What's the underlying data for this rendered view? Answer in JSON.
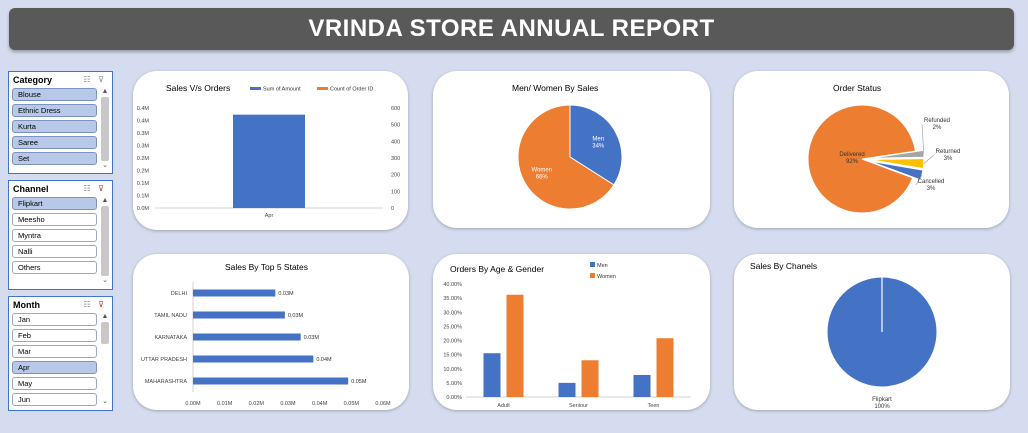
{
  "header": {
    "title": "VRINDA STORE ANNUAL REPORT"
  },
  "colors": {
    "blue": "#4472c4",
    "orange": "#ed7d31",
    "gray": "#a5a5a5",
    "yellow": "#ffc000",
    "banner": "#595959",
    "background": "#d5dcef"
  },
  "slicers": {
    "category": {
      "title": "Category",
      "items": [
        {
          "label": "Blouse",
          "selected": true
        },
        {
          "label": "Ethnic Dress",
          "selected": true
        },
        {
          "label": "Kurta",
          "selected": true
        },
        {
          "label": "Saree",
          "selected": true
        },
        {
          "label": "Set",
          "selected": true
        }
      ]
    },
    "channel": {
      "title": "Channel",
      "items": [
        {
          "label": "Flipkart",
          "selected": true
        },
        {
          "label": "Meesho",
          "selected": false
        },
        {
          "label": "Myntra",
          "selected": false
        },
        {
          "label": "Nalli",
          "selected": false
        },
        {
          "label": "Others",
          "selected": false
        }
      ]
    },
    "month": {
      "title": "Month",
      "items": [
        {
          "label": "Jan",
          "selected": false
        },
        {
          "label": "Feb",
          "selected": false
        },
        {
          "label": "Mar",
          "selected": false
        },
        {
          "label": "Apr",
          "selected": true
        },
        {
          "label": "May",
          "selected": false
        },
        {
          "label": "Jun",
          "selected": false
        }
      ]
    }
  },
  "chart_data": [
    {
      "id": "sales_vs_orders",
      "type": "bar",
      "title": "Sales V/s Orders",
      "categories": [
        "Apr"
      ],
      "series": [
        {
          "name": "Sum of Amount",
          "values": [
            0.42
          ],
          "axis": "left",
          "color": "#4472c4"
        },
        {
          "name": "Count of Order ID",
          "values": [
            0
          ],
          "axis": "right",
          "color": "#ed7d31"
        }
      ],
      "yticks_left": [
        "0.0M",
        "0.1M",
        "0.1M",
        "0.2M",
        "0.2M",
        "0.3M",
        "0.3M",
        "0.4M",
        "0.4M"
      ],
      "yticks_right": [
        "0",
        "100",
        "200",
        "300",
        "400",
        "500",
        "600"
      ],
      "ylim_left": [
        0,
        0.45
      ],
      "legend": "top",
      "grid": false
    },
    {
      "id": "men_women_sales",
      "type": "pie",
      "title": "Men/ Women By Sales",
      "slices": [
        {
          "label": "Men",
          "value": 34,
          "display": "34%",
          "color": "#4472c4"
        },
        {
          "label": "Women",
          "value": 66,
          "display": "66%",
          "color": "#ed7d31"
        }
      ]
    },
    {
      "id": "order_status",
      "type": "pie",
      "title": "Order Status",
      "slices": [
        {
          "label": "Delivered",
          "value": 92,
          "display": "92%",
          "color": "#ed7d31"
        },
        {
          "label": "Refunded",
          "value": 2,
          "display": "2%",
          "color": "#a5a5a5"
        },
        {
          "label": "Returned",
          "value": 3,
          "display": "3%",
          "color": "#ffc000"
        },
        {
          "label": "Cancelled",
          "value": 3,
          "display": "3%",
          "color": "#4472c4"
        }
      ]
    },
    {
      "id": "top5_states",
      "type": "bar",
      "orientation": "horizontal",
      "title": "Sales By Top 5 States",
      "categories": [
        "DELHI",
        "TAMIL NADU",
        "KARNATAKA",
        "UTTAR PRADESH",
        "MAHARASHTRA"
      ],
      "values": [
        0.026,
        0.029,
        0.034,
        0.038,
        0.049
      ],
      "labels": [
        "0.03M",
        "0.03M",
        "0.03M",
        "0.04M",
        "0.05M"
      ],
      "xticks": [
        "0.00M",
        "0.01M",
        "0.02M",
        "0.03M",
        "0.04M",
        "0.05M",
        "0.06M"
      ],
      "xlim": [
        0,
        0.06
      ],
      "color": "#4472c4",
      "grid": false
    },
    {
      "id": "orders_age_gender",
      "type": "bar",
      "title": "Orders By Age & Gender",
      "categories": [
        "Adult",
        "Seniour",
        "Teen"
      ],
      "series": [
        {
          "name": "Men",
          "values": [
            15.5,
            5.0,
            7.8
          ],
          "color": "#4472c4"
        },
        {
          "name": "Women",
          "values": [
            36.2,
            13.0,
            20.8
          ],
          "color": "#ed7d31"
        }
      ],
      "yticks": [
        "0.00%",
        "5.00%",
        "10.00%",
        "15.00%",
        "20.00%",
        "25.00%",
        "30.00%",
        "35.00%",
        "40.00%"
      ],
      "ylim": [
        0,
        40
      ],
      "legend": "top",
      "grid": false
    },
    {
      "id": "sales_by_channels",
      "type": "pie",
      "title": "Sales By Chanels",
      "slices": [
        {
          "label": "Flipkart",
          "value": 100,
          "display": "100%",
          "color": "#4472c4"
        }
      ]
    }
  ]
}
